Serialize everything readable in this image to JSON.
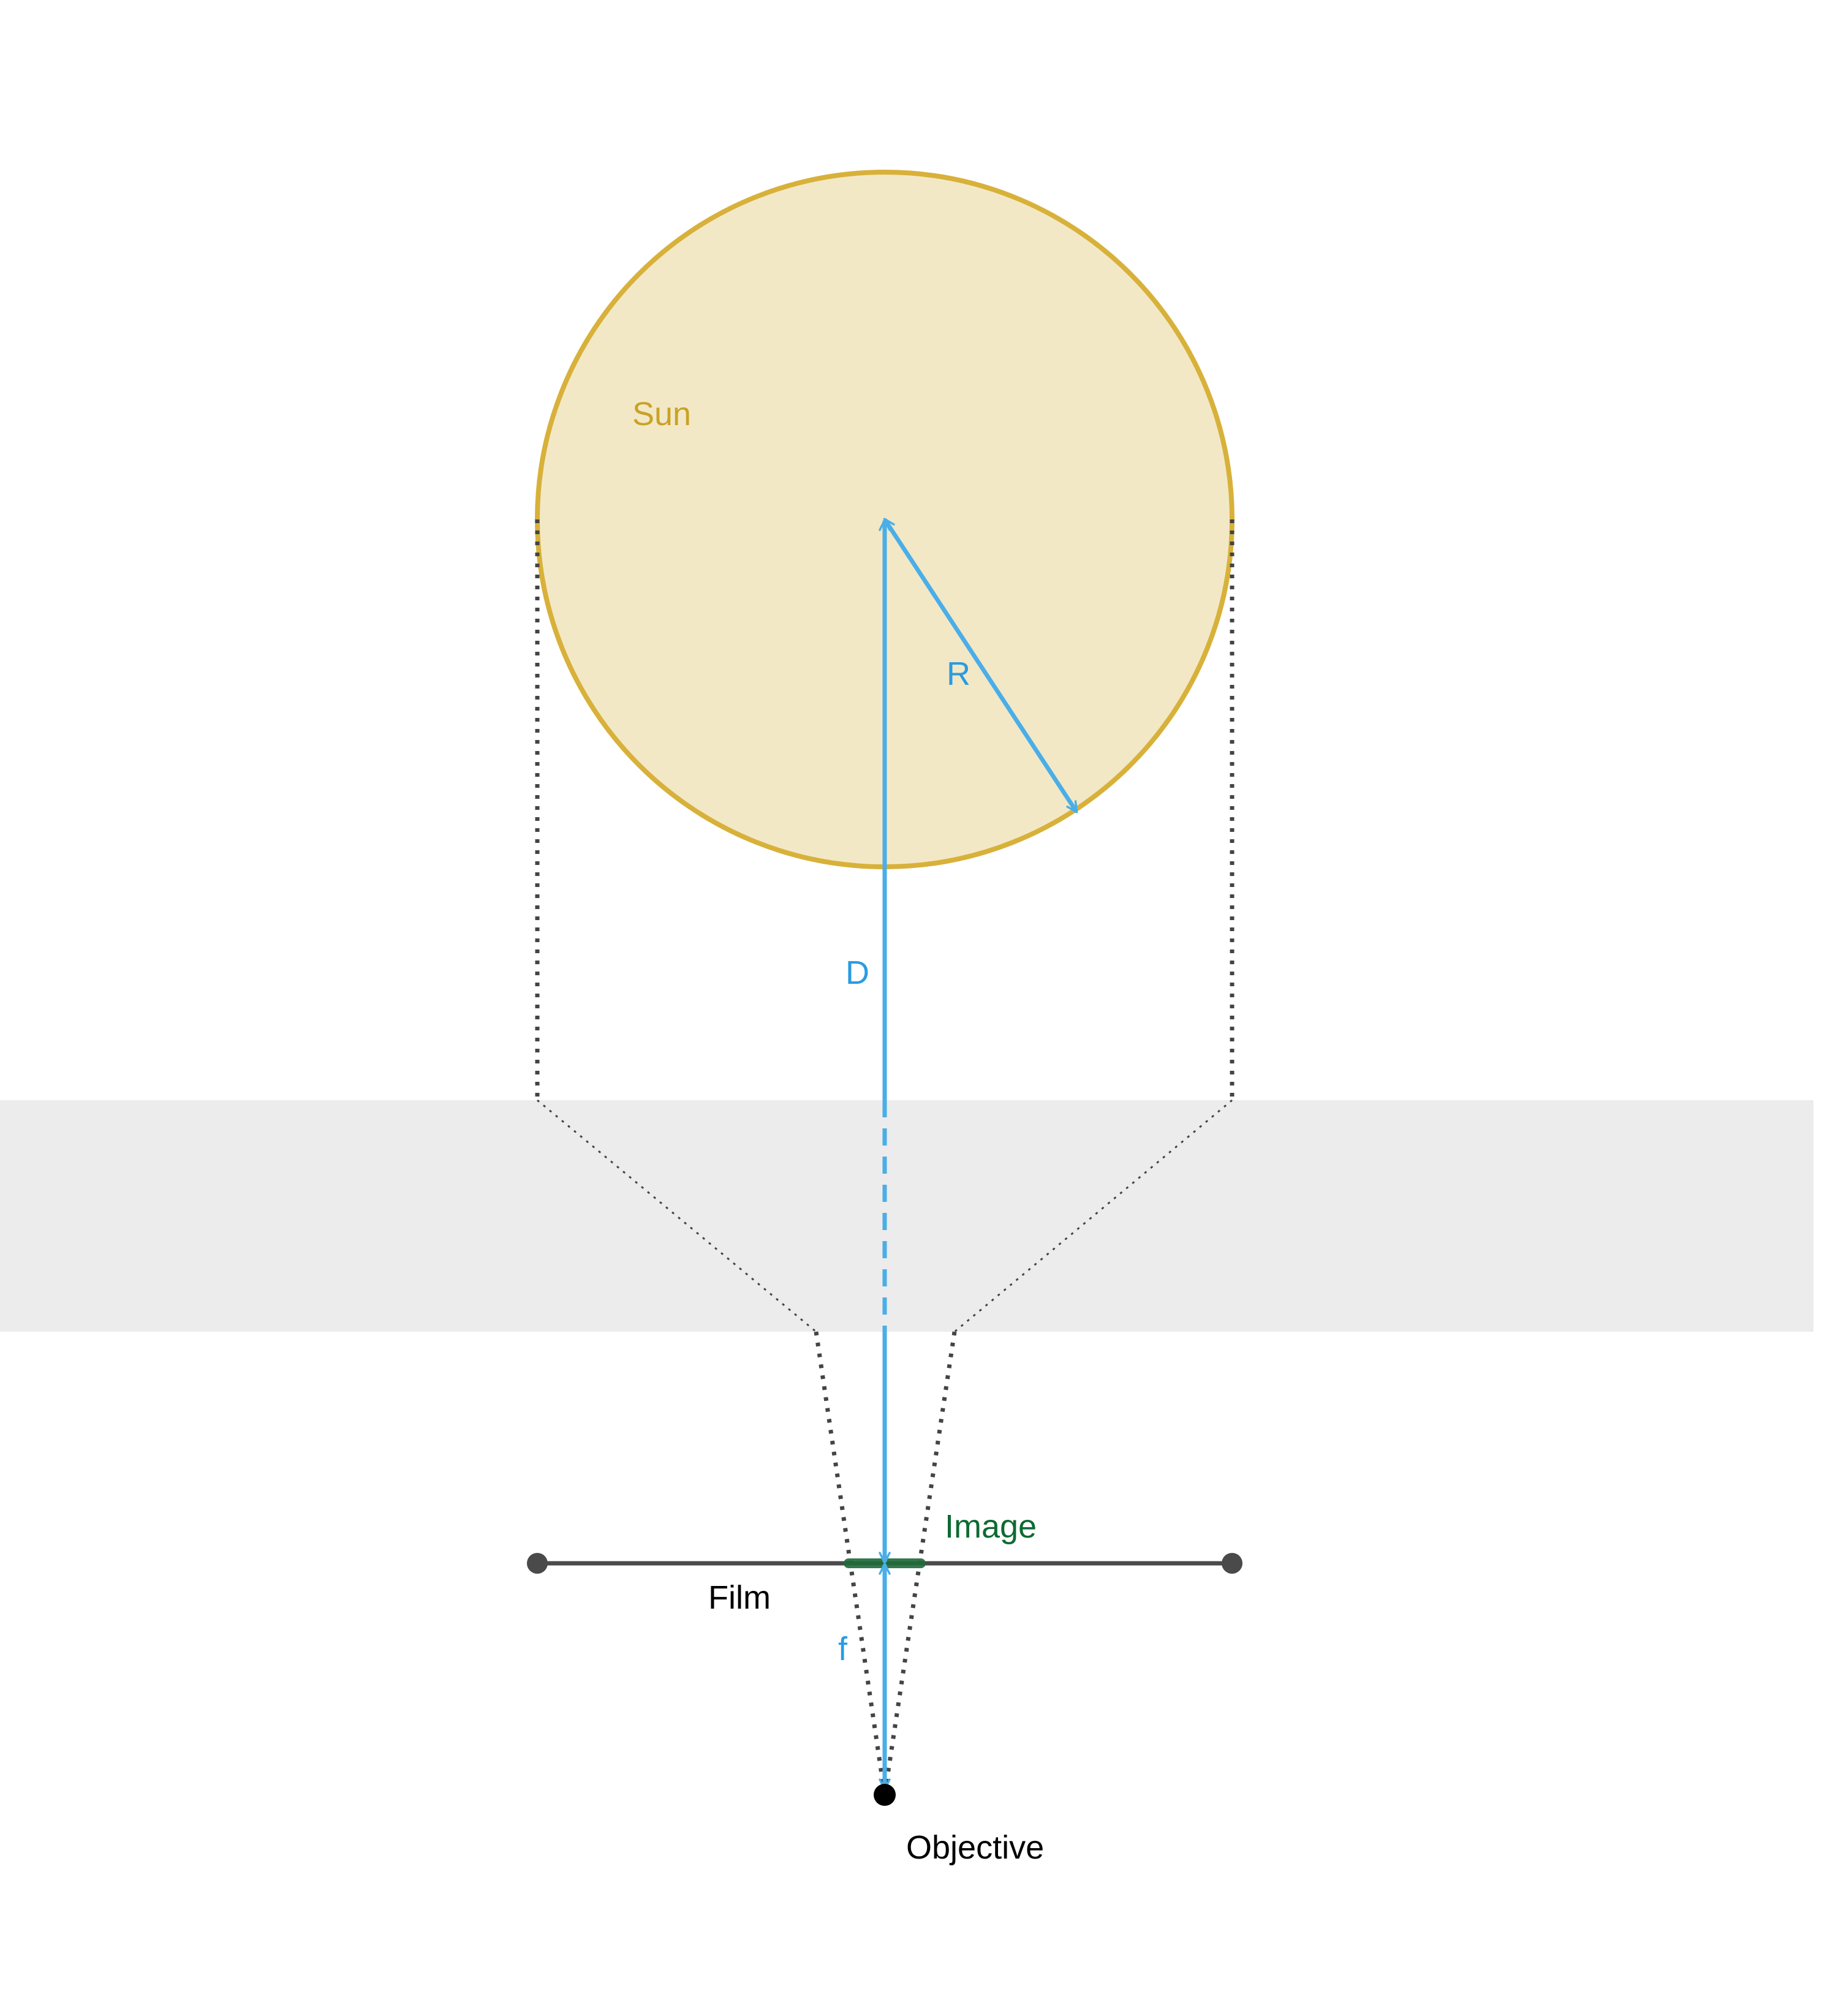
{
  "labels": {
    "sun": "Sun",
    "radius": "R",
    "distance": "D",
    "image": "Image",
    "film": "Film",
    "focal": "f",
    "objective": "Objective"
  },
  "colors": {
    "sun_fill": "#f3e8c6",
    "sun_stroke": "#d8b13a",
    "sun_label": "#c9a227",
    "measure_blue": "#4aaee8",
    "label_blue": "#2a9be0",
    "image_green": "#1f6b3a",
    "image_label_green": "#0e6a32",
    "film_gray": "#4a4a4a",
    "ray_gray": "#444444",
    "band_gray": "#ececec",
    "text_black": "#000000"
  }
}
